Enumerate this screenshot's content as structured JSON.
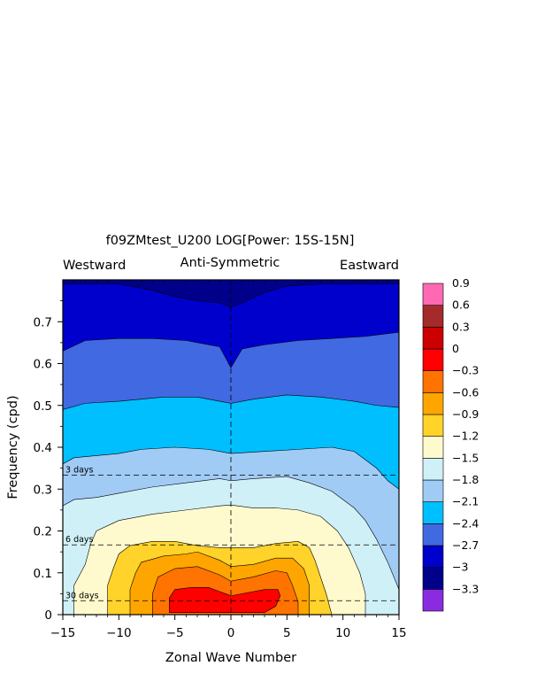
{
  "chart_data": {
    "type": "heatmap",
    "title": "f09ZMtest_U200 LOG[Power: 15S-15N]",
    "subtitle": "Anti-Symmetric",
    "corner_left": "Westward",
    "corner_right": "Eastward",
    "xlabel": "Zonal Wave Number",
    "ylabel": "Frequency (cpd)",
    "xlim": [
      -15,
      15
    ],
    "ylim": [
      0,
      0.8
    ],
    "xticks": [
      -15,
      -10,
      -5,
      0,
      5,
      10,
      15
    ],
    "xtick_labels": [
      "−15",
      "−10",
      "−5",
      "0",
      "5",
      "10",
      "15"
    ],
    "yticks": [
      0,
      0.1,
      0.2,
      0.3,
      0.4,
      0.5,
      0.6,
      0.7
    ],
    "ytick_labels": [
      "0",
      "0.1",
      "0.2",
      "0.3",
      "0.4",
      "0.5",
      "0.6",
      "0.7"
    ],
    "reference_lines": [
      {
        "label": "3 days",
        "frequency": 0.333
      },
      {
        "label": "6 days",
        "frequency": 0.1667
      },
      {
        "label": "30 days",
        "frequency": 0.0333
      }
    ],
    "colorbar": {
      "colors": [
        "#8a2be2",
        "#00008b",
        "#0000cd",
        "#4169e1",
        "#00bfff",
        "#a0cbf5",
        "#d0f0f8",
        "#fffacd",
        "#ffd32a",
        "#ffa500",
        "#ff7300",
        "#ff0000",
        "#cc0000",
        "#a52a2a",
        "#ff69b4"
      ],
      "labels": [
        "−3.3",
        "−3",
        "−2.7",
        "−2.4",
        "−2.1",
        "−1.8",
        "−1.5",
        "−1.2",
        "−0.9",
        "−0.6",
        "−0.3",
        "0",
        "0.3",
        "0.6",
        "0.9"
      ],
      "levels": [
        -3.3,
        -3.0,
        -2.7,
        -2.4,
        -2.1,
        -1.8,
        -1.5,
        -1.2,
        -0.9,
        -0.6,
        -0.3,
        0,
        0.3,
        0.6,
        0.9
      ]
    },
    "contour_levels": [
      {
        "value": -3.0,
        "color": "#0000cd",
        "boundary": [
          [
            -15,
            0.79
          ],
          [
            -10,
            0.79
          ],
          [
            -7,
            0.775
          ],
          [
            -5,
            0.76
          ],
          [
            -3,
            0.75
          ],
          [
            -1,
            0.745
          ],
          [
            0,
            0.735
          ],
          [
            1,
            0.745
          ],
          [
            3,
            0.77
          ],
          [
            5,
            0.785
          ],
          [
            8,
            0.79
          ],
          [
            15,
            0.79
          ]
        ]
      },
      {
        "value": -2.4,
        "color": "#4169e1",
        "boundary": [
          [
            -15,
            0.63
          ],
          [
            -13,
            0.655
          ],
          [
            -10,
            0.66
          ],
          [
            -7,
            0.66
          ],
          [
            -4,
            0.655
          ],
          [
            -1,
            0.64
          ],
          [
            0,
            0.59
          ],
          [
            1,
            0.635
          ],
          [
            3,
            0.645
          ],
          [
            6,
            0.655
          ],
          [
            9,
            0.66
          ],
          [
            12,
            0.665
          ],
          [
            15,
            0.675
          ]
        ]
      },
      {
        "value": -2.1,
        "color": "#00bfff",
        "boundary": [
          [
            -15,
            0.49
          ],
          [
            -13,
            0.505
          ],
          [
            -10,
            0.51
          ],
          [
            -6,
            0.52
          ],
          [
            -3,
            0.52
          ],
          [
            -1,
            0.51
          ],
          [
            0,
            0.505
          ],
          [
            2,
            0.515
          ],
          [
            5,
            0.525
          ],
          [
            8,
            0.52
          ],
          [
            11,
            0.51
          ],
          [
            13,
            0.5
          ],
          [
            15,
            0.495
          ]
        ]
      },
      {
        "value": -1.8,
        "color": "#a0cbf5",
        "boundary": [
          [
            -15,
            0.36
          ],
          [
            -14,
            0.375
          ],
          [
            -12,
            0.38
          ],
          [
            -10,
            0.385
          ],
          [
            -8,
            0.395
          ],
          [
            -5,
            0.4
          ],
          [
            -2,
            0.395
          ],
          [
            0,
            0.385
          ],
          [
            3,
            0.39
          ],
          [
            6,
            0.395
          ],
          [
            9,
            0.4
          ],
          [
            11,
            0.39
          ],
          [
            12,
            0.37
          ],
          [
            13,
            0.35
          ],
          [
            14,
            0.32
          ],
          [
            15,
            0.3
          ]
        ]
      },
      {
        "value": -1.5,
        "color": "#d0f0f8",
        "boundary": [
          [
            -15,
            0.26
          ],
          [
            -14,
            0.275
          ],
          [
            -12,
            0.28
          ],
          [
            -10,
            0.29
          ],
          [
            -7,
            0.305
          ],
          [
            -4,
            0.315
          ],
          [
            -1,
            0.325
          ],
          [
            0,
            0.32
          ],
          [
            2,
            0.325
          ],
          [
            5,
            0.33
          ],
          [
            7,
            0.315
          ],
          [
            9,
            0.295
          ],
          [
            11,
            0.255
          ],
          [
            12,
            0.225
          ],
          [
            13,
            0.18
          ],
          [
            14,
            0.125
          ],
          [
            15,
            0.06
          ]
        ]
      },
      {
        "value": -1.2,
        "color": "#fffacd",
        "boundary": [
          [
            -14,
            0.0
          ],
          [
            -14,
            0.07
          ],
          [
            -13,
            0.12
          ],
          [
            -12.5,
            0.17
          ],
          [
            -12,
            0.2
          ],
          [
            -10,
            0.225
          ],
          [
            -7,
            0.24
          ],
          [
            -4,
            0.25
          ],
          [
            -1,
            0.26
          ],
          [
            0,
            0.262
          ],
          [
            2,
            0.255
          ],
          [
            4,
            0.255
          ],
          [
            6,
            0.25
          ],
          [
            8,
            0.235
          ],
          [
            9.5,
            0.2
          ],
          [
            10.5,
            0.16
          ],
          [
            11.5,
            0.1
          ],
          [
            12,
            0.05
          ],
          [
            12,
            0.0
          ]
        ]
      },
      {
        "value": -0.9,
        "color": "#ffd32a",
        "boundary": [
          [
            -11,
            0.0
          ],
          [
            -11,
            0.07
          ],
          [
            -10.5,
            0.11
          ],
          [
            -10,
            0.145
          ],
          [
            -9,
            0.165
          ],
          [
            -7,
            0.175
          ],
          [
            -5,
            0.175
          ],
          [
            -3,
            0.165
          ],
          [
            -1,
            0.16
          ],
          [
            0,
            0.16
          ],
          [
            2,
            0.16
          ],
          [
            4,
            0.17
          ],
          [
            6,
            0.175
          ],
          [
            7,
            0.16
          ],
          [
            7.5,
            0.13
          ],
          [
            8,
            0.09
          ],
          [
            8.5,
            0.05
          ],
          [
            9,
            0.0
          ]
        ]
      },
      {
        "value": -0.6,
        "color": "#ffa500",
        "boundary": [
          [
            -9,
            0.0
          ],
          [
            -9,
            0.06
          ],
          [
            -8.5,
            0.1
          ],
          [
            -8,
            0.125
          ],
          [
            -6,
            0.14
          ],
          [
            -4,
            0.145
          ],
          [
            -3,
            0.15
          ],
          [
            -1,
            0.13
          ],
          [
            0,
            0.115
          ],
          [
            2,
            0.12
          ],
          [
            4,
            0.135
          ],
          [
            5.5,
            0.135
          ],
          [
            6.5,
            0.11
          ],
          [
            7,
            0.07
          ],
          [
            7,
            0.0
          ]
        ]
      },
      {
        "value": -0.3,
        "color": "#ff7300",
        "boundary": [
          [
            -7,
            0.0
          ],
          [
            -7,
            0.05
          ],
          [
            -6.5,
            0.09
          ],
          [
            -5,
            0.11
          ],
          [
            -3,
            0.115
          ],
          [
            -1,
            0.095
          ],
          [
            0,
            0.08
          ],
          [
            2,
            0.09
          ],
          [
            4,
            0.105
          ],
          [
            5,
            0.1
          ],
          [
            5.5,
            0.07
          ],
          [
            6,
            0.03
          ],
          [
            6,
            0.0
          ]
        ]
      },
      {
        "value": 0.0,
        "color": "#ff0000",
        "boundary": [
          [
            -5.5,
            0.005
          ],
          [
            -5.5,
            0.04
          ],
          [
            -5,
            0.06
          ],
          [
            -3.5,
            0.065
          ],
          [
            -2,
            0.065
          ],
          [
            -1,
            0.055
          ],
          [
            0,
            0.045
          ],
          [
            1,
            0.05
          ],
          [
            3,
            0.06
          ],
          [
            4.2,
            0.06
          ],
          [
            4.4,
            0.045
          ],
          [
            4,
            0.02
          ],
          [
            3,
            0.005
          ]
        ]
      }
    ]
  }
}
